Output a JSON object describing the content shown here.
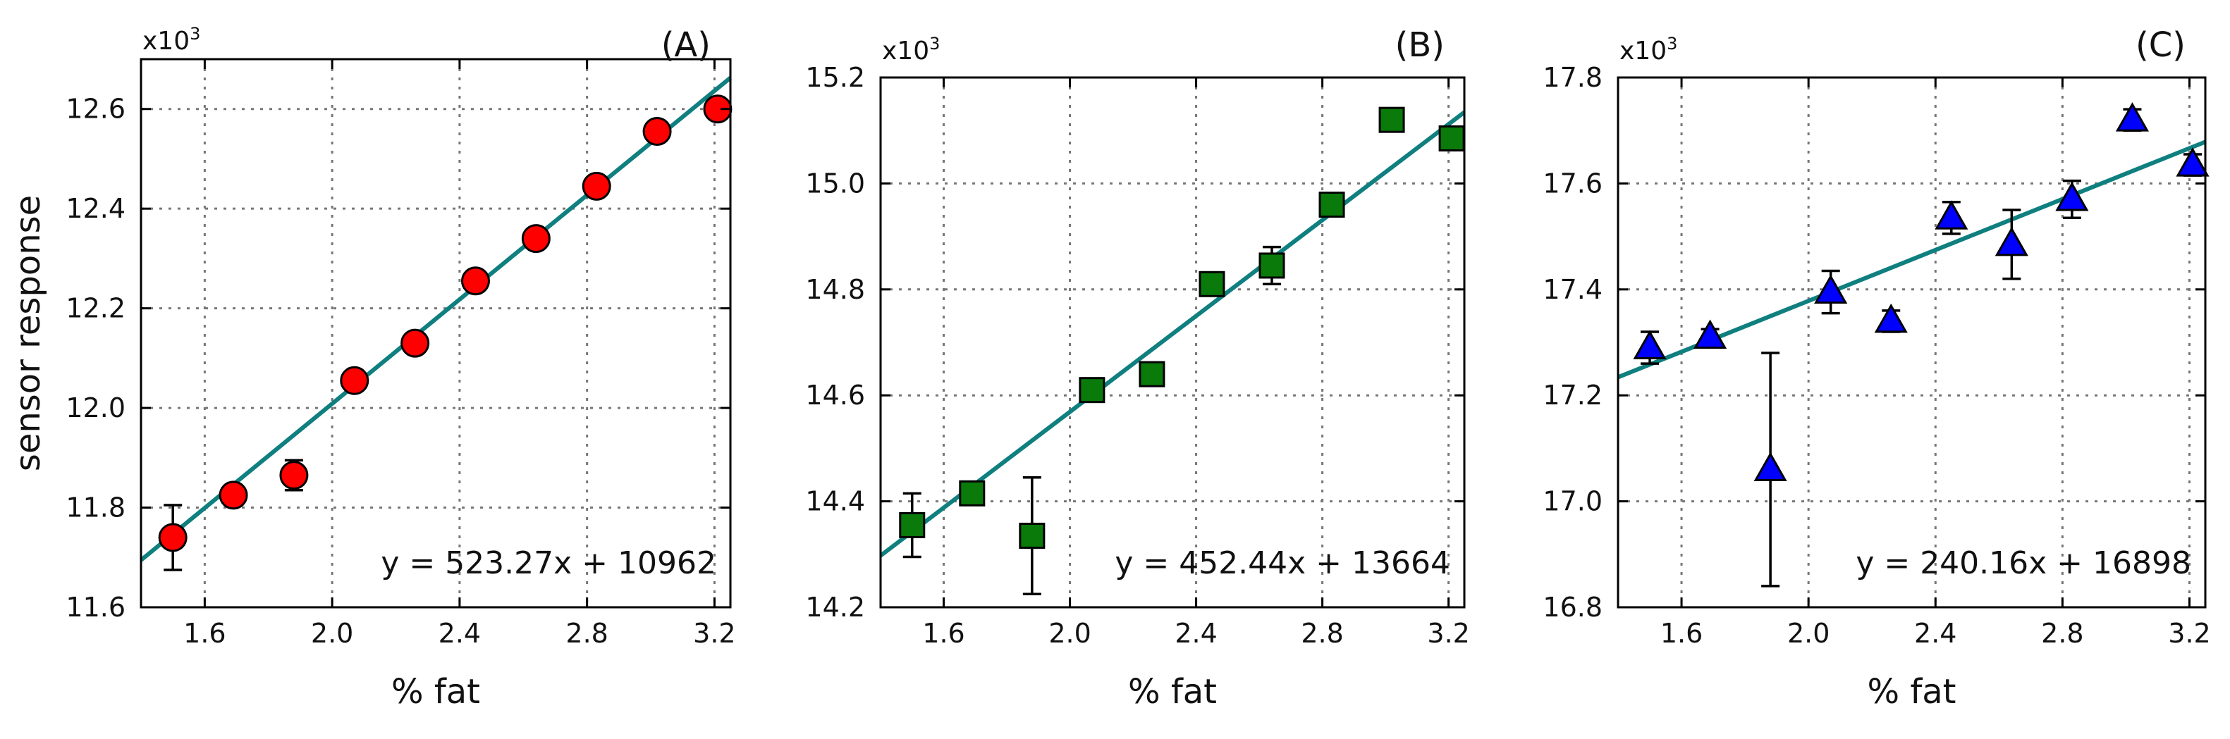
{
  "chart_data": [
    {
      "type": "scatter",
      "panel_label": "(A)",
      "xlabel": "% fat",
      "ylabel": "sensor response",
      "axis_multiplier": "x10",
      "axis_multiplier_exp": "3",
      "xlim": [
        1.4,
        3.25
      ],
      "ylim": [
        11.6,
        12.7
      ],
      "xticks": [
        1.6,
        2.0,
        2.4,
        2.8,
        3.2
      ],
      "xtick_labels": [
        "1.6",
        "2.0",
        "2.4",
        "2.8",
        "3.2"
      ],
      "yticks": [
        11.6,
        11.8,
        12.0,
        12.2,
        12.4,
        12.6
      ],
      "ytick_labels": [
        "11.6",
        "11.8",
        "12.0",
        "12.2",
        "12.4",
        "12.6"
      ],
      "grid": true,
      "marker": "circle",
      "marker_color": "#ff0000",
      "fit_color": "#0f7f7f",
      "equation": "y = 523.27x + 10962",
      "fit": {
        "slope": 0.52327,
        "intercept": 10.962
      },
      "points": [
        {
          "x": 1.5,
          "y": 11.74,
          "err": 0.065
        },
        {
          "x": 1.69,
          "y": 11.825,
          "err": 0.02
        },
        {
          "x": 1.88,
          "y": 11.865,
          "err": 0.03
        },
        {
          "x": 2.07,
          "y": 12.055,
          "err": 0.012
        },
        {
          "x": 2.26,
          "y": 12.13,
          "err": 0.015
        },
        {
          "x": 2.45,
          "y": 12.255,
          "err": 0.015
        },
        {
          "x": 2.64,
          "y": 12.34,
          "err": 0.015
        },
        {
          "x": 2.83,
          "y": 12.445,
          "err": 0.015
        },
        {
          "x": 3.02,
          "y": 12.555,
          "err": 0.015
        },
        {
          "x": 3.21,
          "y": 12.6,
          "err": 0.015
        }
      ]
    },
    {
      "type": "scatter",
      "panel_label": "(B)",
      "xlabel": "% fat",
      "ylabel": "",
      "axis_multiplier": "x10",
      "axis_multiplier_exp": "3",
      "xlim": [
        1.4,
        3.25
      ],
      "ylim": [
        14.2,
        15.2
      ],
      "xticks": [
        1.6,
        2.0,
        2.4,
        2.8,
        3.2
      ],
      "xtick_labels": [
        "1.6",
        "2.0",
        "2.4",
        "2.8",
        "3.2"
      ],
      "yticks": [
        14.2,
        14.4,
        14.6,
        14.8,
        15.0,
        15.2
      ],
      "ytick_labels": [
        "14.2",
        "14.4",
        "14.6",
        "14.8",
        "15.0",
        "15.2"
      ],
      "grid": true,
      "marker": "square",
      "marker_color": "#0a7a0a",
      "fit_color": "#0f7f7f",
      "equation": "y = 452.44x + 13664",
      "fit": {
        "slope": 0.45244,
        "intercept": 13.664
      },
      "points": [
        {
          "x": 1.5,
          "y": 14.355,
          "err": 0.06
        },
        {
          "x": 1.69,
          "y": 14.415,
          "err": 0.015
        },
        {
          "x": 1.88,
          "y": 14.335,
          "err": 0.11
        },
        {
          "x": 2.07,
          "y": 14.61,
          "err": 0.015
        },
        {
          "x": 2.26,
          "y": 14.64,
          "err": 0.015
        },
        {
          "x": 2.45,
          "y": 14.81,
          "err": 0.015
        },
        {
          "x": 2.64,
          "y": 14.845,
          "err": 0.035
        },
        {
          "x": 2.83,
          "y": 14.96,
          "err": 0.015
        },
        {
          "x": 3.02,
          "y": 15.12,
          "err": 0.015
        },
        {
          "x": 3.21,
          "y": 15.085,
          "err": 0.02
        }
      ]
    },
    {
      "type": "scatter",
      "panel_label": "(C)",
      "xlabel": "% fat",
      "ylabel": "",
      "axis_multiplier": "x10",
      "axis_multiplier_exp": "3",
      "xlim": [
        1.4,
        3.25
      ],
      "ylim": [
        16.8,
        17.8
      ],
      "xticks": [
        1.6,
        2.0,
        2.4,
        2.8,
        3.2
      ],
      "xtick_labels": [
        "1.6",
        "2.0",
        "2.4",
        "2.8",
        "3.2"
      ],
      "yticks": [
        16.8,
        17.0,
        17.2,
        17.4,
        17.6,
        17.8
      ],
      "ytick_labels": [
        "16.8",
        "17.0",
        "17.2",
        "17.4",
        "17.6",
        "17.8"
      ],
      "grid": true,
      "marker": "triangle",
      "marker_color": "#0000ff",
      "fit_color": "#0f7f7f",
      "equation": "y = 240.16x + 16898",
      "fit": {
        "slope": 0.24016,
        "intercept": 16.898
      },
      "points": [
        {
          "x": 1.5,
          "y": 17.29,
          "err": 0.03
        },
        {
          "x": 1.69,
          "y": 17.31,
          "err": 0.015
        },
        {
          "x": 1.88,
          "y": 17.06,
          "err": 0.22
        },
        {
          "x": 2.07,
          "y": 17.395,
          "err": 0.04
        },
        {
          "x": 2.26,
          "y": 17.34,
          "err": 0.02
        },
        {
          "x": 2.45,
          "y": 17.535,
          "err": 0.03
        },
        {
          "x": 2.64,
          "y": 17.485,
          "err": 0.065
        },
        {
          "x": 2.83,
          "y": 17.57,
          "err": 0.035
        },
        {
          "x": 3.02,
          "y": 17.72,
          "err": 0.02
        },
        {
          "x": 3.21,
          "y": 17.635,
          "err": 0.02
        }
      ]
    }
  ]
}
